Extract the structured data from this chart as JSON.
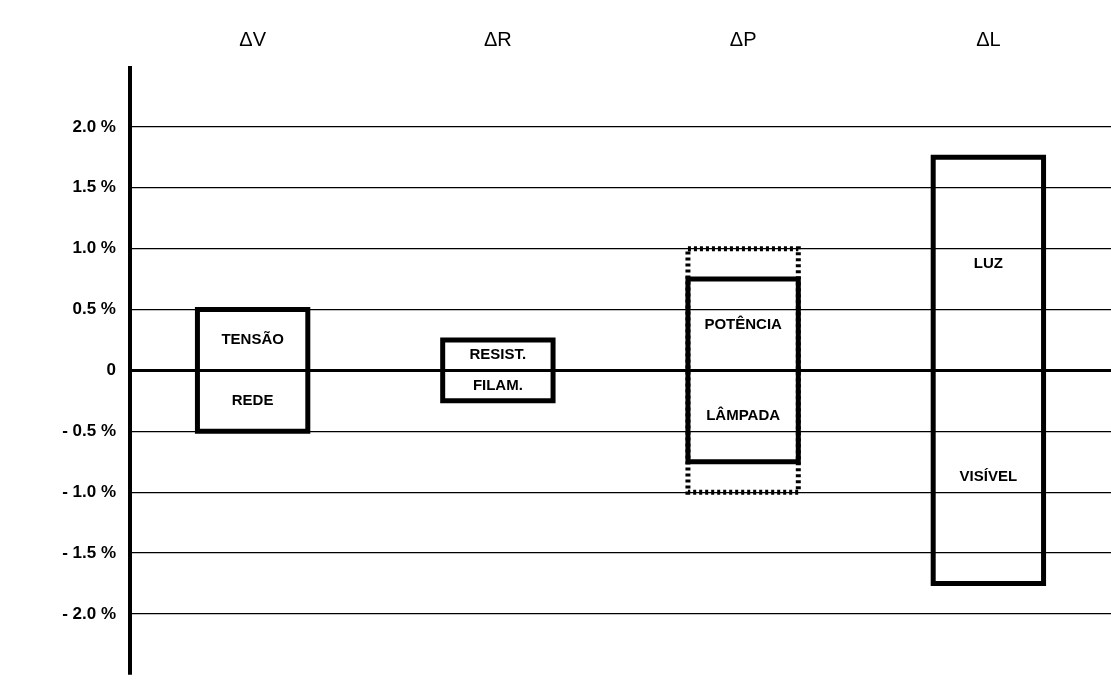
{
  "chart_data": {
    "type": "bar",
    "categories": [
      "ΔV",
      "ΔR",
      "ΔP",
      "ΔL"
    ],
    "series": [
      {
        "color": "#000000",
        "line_style": "dotted",
        "base": [
          null,
          null,
          -1.0,
          null
        ],
        "values": [
          null,
          null,
          2.0,
          null
        ]
      },
      {
        "color": "#000000",
        "line_style": "solid",
        "base": [
          -0.5,
          -0.25,
          -0.75,
          -1.75
        ],
        "values": [
          1.0,
          0.5,
          1.5,
          3.5
        ]
      }
    ],
    "ylim": [
      -2.5,
      2.5
    ],
    "yticks": [
      {
        "value": -2,
        "label": "- 2.0 %"
      },
      {
        "value": -1.5,
        "label": "- 1.5 %"
      },
      {
        "value": -1,
        "label": "- 1.0 %"
      },
      {
        "value": -0.5,
        "label": "- 0.5 %"
      },
      {
        "value": 0,
        "label": "0"
      },
      {
        "value": 0.5,
        "label": "0.5 %"
      },
      {
        "value": 1,
        "label": "1.0 %"
      },
      {
        "value": 1.5,
        "label": "1.5 %"
      },
      {
        "value": 2,
        "label": "2.0 %"
      }
    ],
    "grid": "y",
    "legend": false,
    "ref_lines": [
      {
        "axis": "y",
        "value": 0
      }
    ],
    "annotations": [
      "TENSÃO",
      "REDE",
      "RESIST.",
      "FILAM.",
      "POTÊNCIA",
      "LÂMPADA",
      "LUZ",
      "VISÍVEL"
    ]
  }
}
